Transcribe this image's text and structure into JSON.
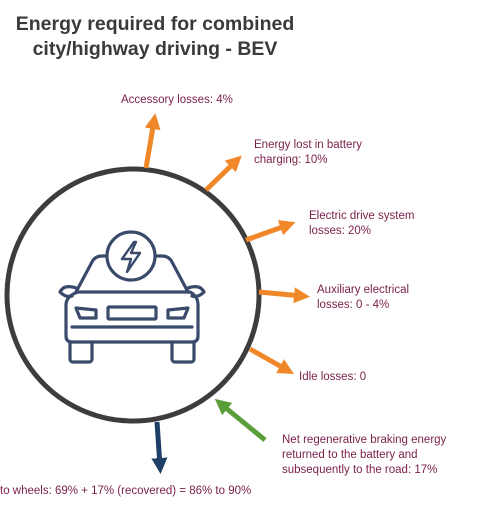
{
  "title": {
    "line1": "Energy required for combined",
    "line2": "city/highway driving - BEV"
  },
  "labels": {
    "accessory": "Accessory losses: 4%",
    "battery_line1": "Energy lost in battery",
    "battery_line2": "charging: 10%",
    "drive_line1": "Electric drive system",
    "drive_line2": "losses: 20%",
    "aux_line1": "Auxiliary electrical",
    "aux_line2": "losses: 0 - 4%",
    "idle": "Idle losses: 0",
    "regen_line1": "Net regenerative braking energy",
    "regen_line2": "returned to the battery and",
    "regen_line3": "subsequently to the road: 17%",
    "wheels": "to wheels: 69% + 17% (recovered) = 86% to 90%"
  },
  "colors": {
    "loss_arrow": "#f0882a",
    "regen_arrow": "#5a9e3a",
    "wheels_arrow": "#1e3f66",
    "circle": "#3d3d3d",
    "car_icon": "#3a4a6b",
    "label_text": "#7a1f4a"
  },
  "icons": {
    "car": "electric-car-icon",
    "bolt": "lightning-bolt-icon"
  }
}
